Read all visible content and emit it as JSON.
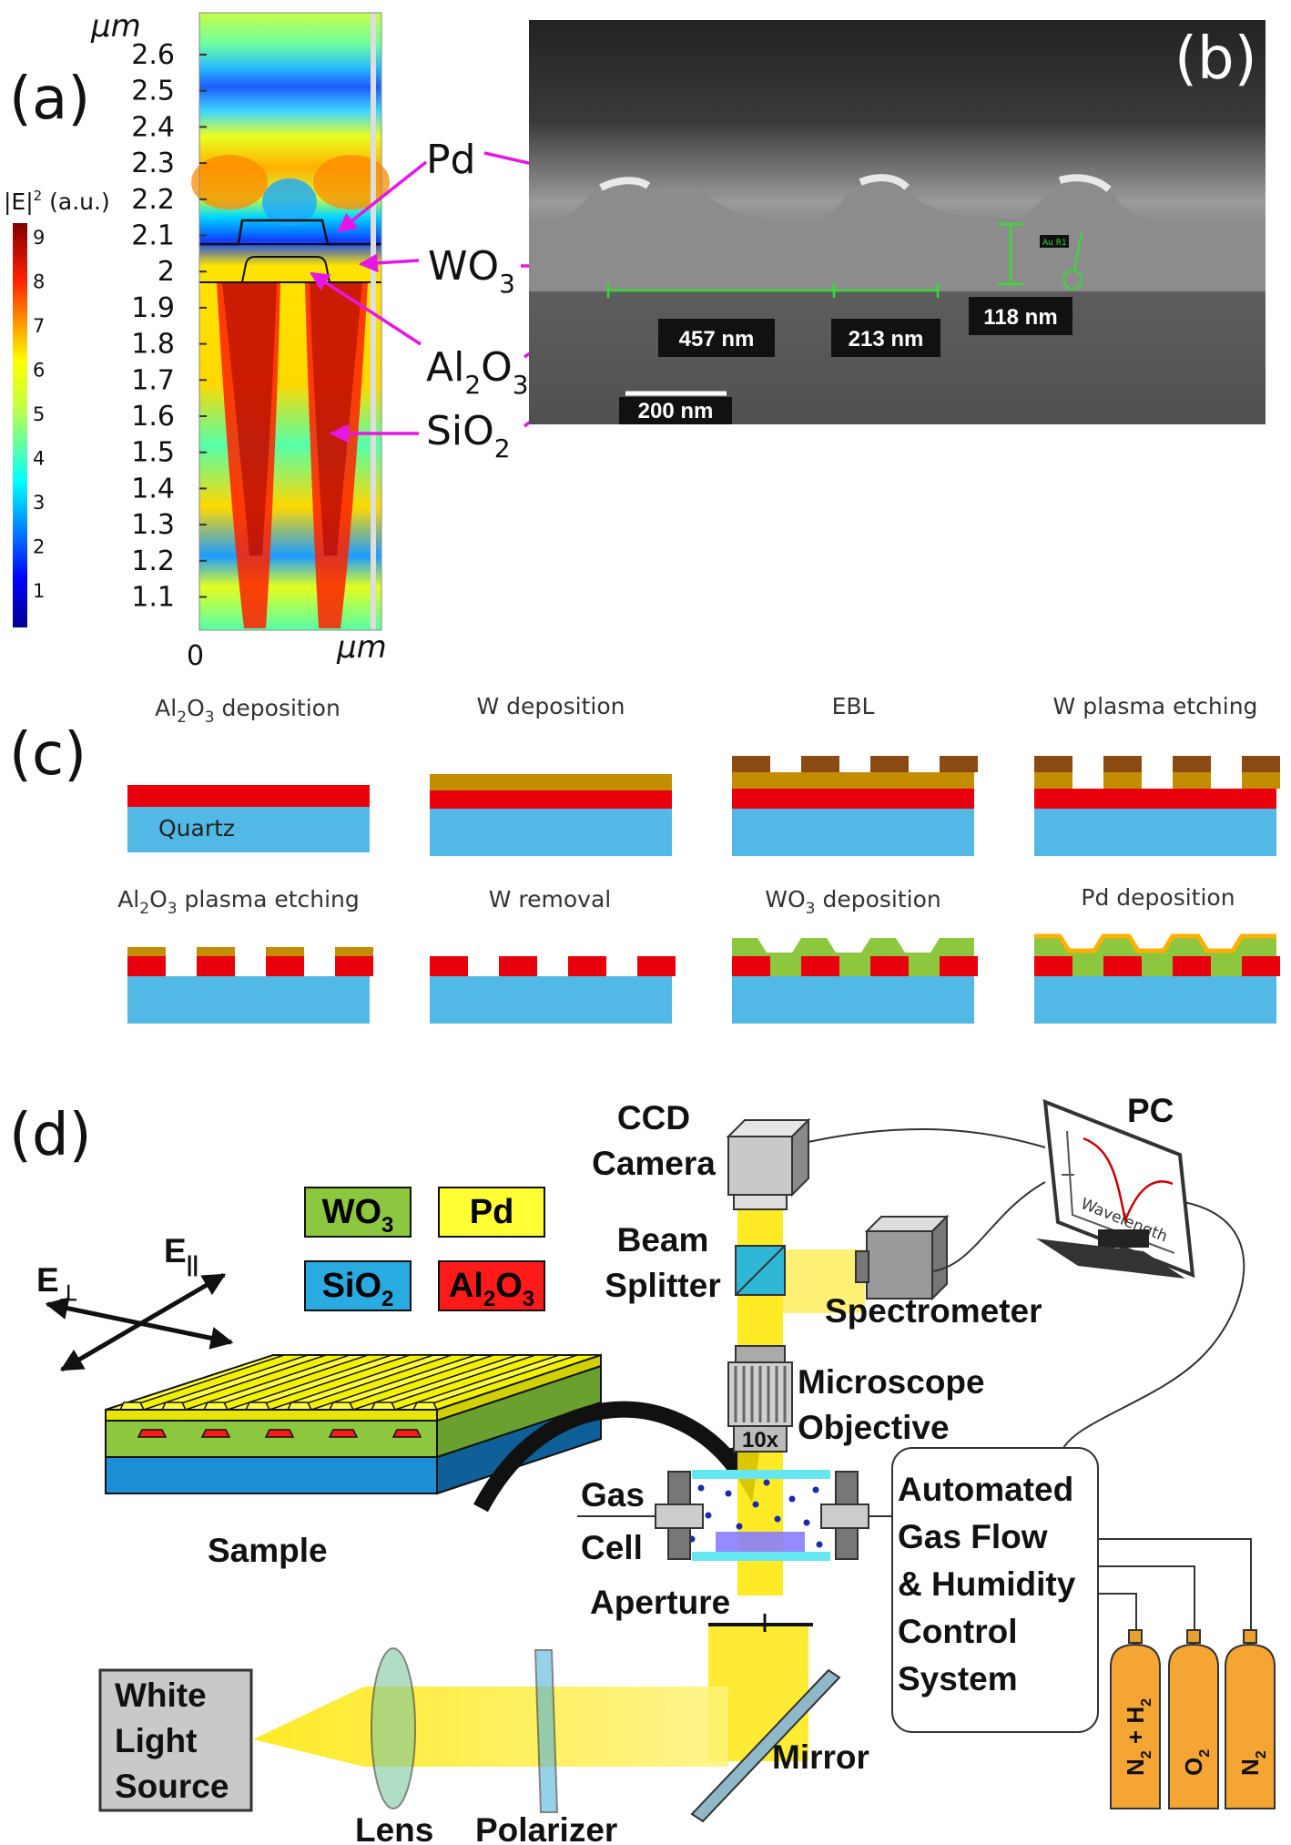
{
  "panels": {
    "a": "(a)",
    "b": "(b)",
    "c": "(c)",
    "d": "(d)"
  },
  "panel_a": {
    "y_unit": "μm",
    "x_unit": "μm",
    "x_tick_zero": "0",
    "y_ticks": [
      "2.6",
      "2.5",
      "2.4",
      "2.3",
      "2.2",
      "2.1",
      "2",
      "1.9",
      "1.8",
      "1.7",
      "1.6",
      "1.5",
      "1.4",
      "1.3",
      "1.2",
      "1.1"
    ],
    "colorbar_title_prefix": "|E|",
    "colorbar_title_sup": "2",
    "colorbar_title_suffix": " (a.u.)",
    "colorbar_ticks": [
      "9",
      "8",
      "7",
      "6",
      "5",
      "4",
      "3",
      "2",
      "1"
    ],
    "labels": {
      "pd": "Pd",
      "wo3": {
        "base": "WO",
        "sub": "3"
      },
      "al2o3": {
        "a": "Al",
        "s1": "2",
        "b": "O",
        "s2": "3"
      },
      "sio2": {
        "base": "SiO",
        "sub": "2"
      }
    }
  },
  "panel_b": {
    "measure_457": "457 nm",
    "measure_213": "213 nm",
    "measure_118": "118 nm",
    "scale_bar": "200 nm",
    "tag": "Au R1"
  },
  "panel_c": {
    "steps_row1": [
      {
        "pre": "Al",
        "sub": "2",
        "mid": "O",
        "sub2": "3",
        "post": " deposition"
      },
      {
        "pre": "W deposition"
      },
      {
        "pre": "EBL"
      },
      {
        "pre": "W plasma etching"
      }
    ],
    "steps_row2": [
      {
        "pre": "Al",
        "sub": "2",
        "mid": "O",
        "sub2": "3",
        "post": " plasma etching"
      },
      {
        "pre": "W removal"
      },
      {
        "pre": "WO",
        "sub": "3",
        "post": " deposition"
      },
      {
        "pre": "Pd deposition"
      }
    ],
    "substrate_label": "Quartz"
  },
  "panel_d": {
    "legend": {
      "wo3": {
        "base": "WO",
        "sub": "3",
        "color": "#8dc63f"
      },
      "pd": {
        "base": "Pd",
        "color": "#ffff33"
      },
      "sio2": {
        "base": "SiO",
        "sub": "2",
        "color": "#29abe2"
      },
      "al2o3": {
        "a": "Al",
        "s1": "2",
        "b": "O",
        "s2": "3",
        "color": "#ff1a1a"
      }
    },
    "e_perp": {
      "base": "E",
      "sub": "⊥"
    },
    "e_par": {
      "base": "E",
      "sub": "||"
    },
    "sample": "Sample",
    "ccd": [
      "CCD",
      "Camera"
    ],
    "pc": "PC",
    "pc_axis": "Wavelength",
    "beam_splitter": [
      "Beam",
      "Splitter"
    ],
    "spectrometer": "Spectrometer",
    "microscope_objective": [
      "Microscope",
      "Objective"
    ],
    "objective_mag": "10x",
    "gas_cell": [
      "Gas",
      "Cell"
    ],
    "aperture": "Aperture",
    "control_system": [
      "Automated",
      "Gas Flow",
      "& Humidity",
      "Control",
      "System"
    ],
    "white_light_source": [
      "White",
      "Light",
      "Source"
    ],
    "lens": "Lens",
    "polarizer": "Polarizer",
    "mirror": "Mirror",
    "cylinders": [
      {
        "a": "N",
        "s1": "2",
        "b": " + H",
        "s2": "2"
      },
      {
        "a": "O",
        "s1": "2"
      },
      {
        "a": "N",
        "s1": "2"
      }
    ]
  }
}
